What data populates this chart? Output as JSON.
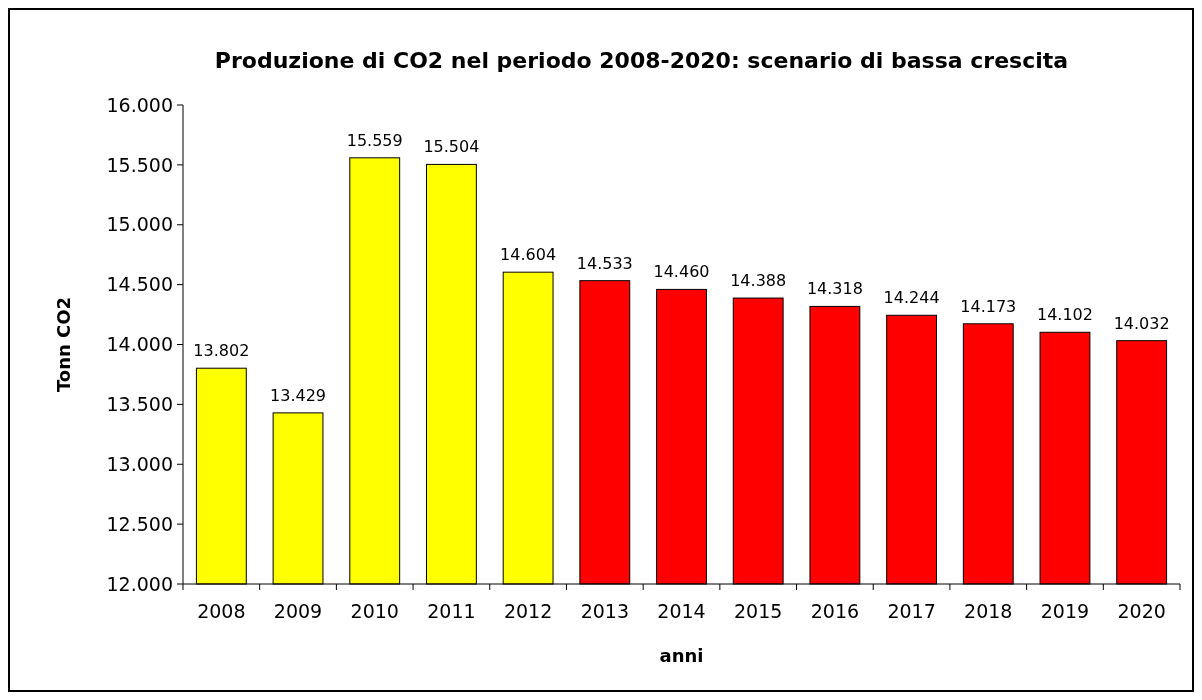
{
  "chart_data": {
    "type": "bar",
    "title": "Produzione di CO2 nel periodo 2008-2020: scenario di bassa crescita",
    "xlabel": "anni",
    "ylabel": "Tonn CO2",
    "categories": [
      "2008",
      "2009",
      "2010",
      "2011",
      "2012",
      "2013",
      "2014",
      "2015",
      "2016",
      "2017",
      "2018",
      "2019",
      "2020"
    ],
    "values": [
      13802,
      13429,
      15559,
      15504,
      14604,
      14533,
      14460,
      14388,
      14318,
      14244,
      14173,
      14102,
      14032
    ],
    "colors": [
      "#ffff00",
      "#ffff00",
      "#ffff00",
      "#ffff00",
      "#ffff00",
      "#ff0000",
      "#ff0000",
      "#ff0000",
      "#ff0000",
      "#ff0000",
      "#ff0000",
      "#ff0000",
      "#ff0000"
    ],
    "value_labels": [
      "13.802",
      "13.429",
      "15.559",
      "15.504",
      "14.604",
      "14.533",
      "14.460",
      "14.388",
      "14.318",
      "14.244",
      "14.173",
      "14.102",
      "14.032"
    ],
    "ylim": [
      12000,
      16000
    ],
    "yticks": [
      {
        "value": 12000,
        "label": "12.000"
      },
      {
        "value": 12500,
        "label": "12.500"
      },
      {
        "value": 13000,
        "label": "13.000"
      },
      {
        "value": 13500,
        "label": "13.500"
      },
      {
        "value": 14000,
        "label": "14.000"
      },
      {
        "value": 14500,
        "label": "14.500"
      },
      {
        "value": 15000,
        "label": "15.000"
      },
      {
        "value": 15500,
        "label": "15.500"
      },
      {
        "value": 16000,
        "label": "16.000"
      }
    ],
    "grid": false
  }
}
